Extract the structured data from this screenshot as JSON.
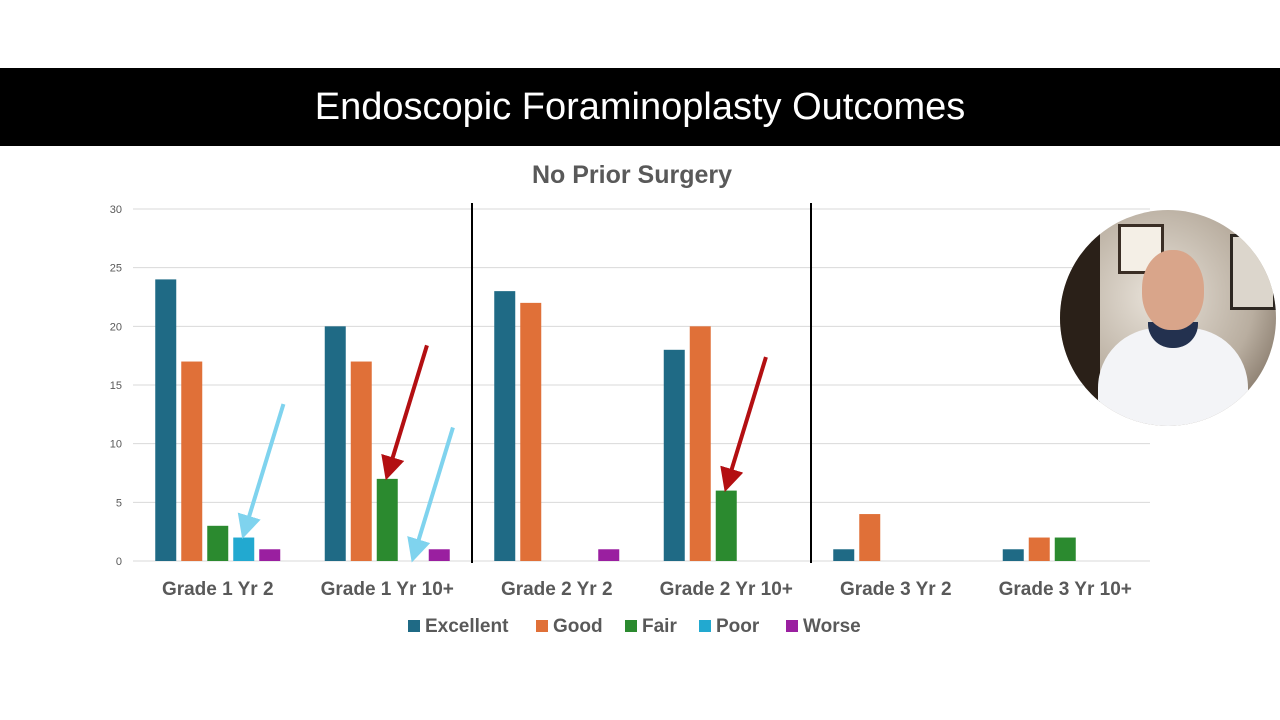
{
  "slide": {
    "title": "Endoscopic Foraminoplasty Outcomes"
  },
  "chart_data": {
    "type": "bar",
    "title": "No Prior Surgery",
    "categories": [
      "Grade 1 Yr 2",
      "Grade 1 Yr 10+",
      "Grade 2 Yr 2",
      "Grade 2 Yr 10+",
      "Grade 3 Yr 2",
      "Grade 3 Yr 10+"
    ],
    "series": [
      {
        "name": "Excellent",
        "color": "#1f6a85",
        "values": [
          24,
          20,
          23,
          18,
          1,
          1
        ]
      },
      {
        "name": "Good",
        "color": "#e07038",
        "values": [
          17,
          17,
          22,
          20,
          4,
          2
        ]
      },
      {
        "name": "Fair",
        "color": "#2b8a2f",
        "values": [
          3,
          7,
          0,
          6,
          0,
          2
        ]
      },
      {
        "name": "Poor",
        "color": "#22a9d0",
        "values": [
          2,
          0,
          0,
          0,
          0,
          0
        ]
      },
      {
        "name": "Worse",
        "color": "#9a1fa0",
        "values": [
          1,
          1,
          1,
          0,
          0,
          0
        ]
      }
    ],
    "ylim": [
      0,
      30
    ],
    "yticks": [
      0,
      5,
      10,
      15,
      20,
      25,
      30
    ],
    "grid": true,
    "legend": "bottom",
    "separators_after_category": [
      1,
      3
    ],
    "annotations": [
      {
        "type": "arrow",
        "color": "#7fd3ee",
        "points_to": {
          "category": "Grade 1 Yr 2",
          "series": "Poor"
        }
      },
      {
        "type": "arrow",
        "color": "#b30f12",
        "points_to": {
          "category": "Grade 1 Yr 10+",
          "series": "Fair"
        }
      },
      {
        "type": "arrow",
        "color": "#7fd3ee",
        "points_to": {
          "category": "Grade 1 Yr 10+",
          "series": "Poor"
        }
      },
      {
        "type": "arrow",
        "color": "#b30f12",
        "points_to": {
          "category": "Grade 2 Yr 10+",
          "series": "Fair"
        }
      }
    ]
  }
}
